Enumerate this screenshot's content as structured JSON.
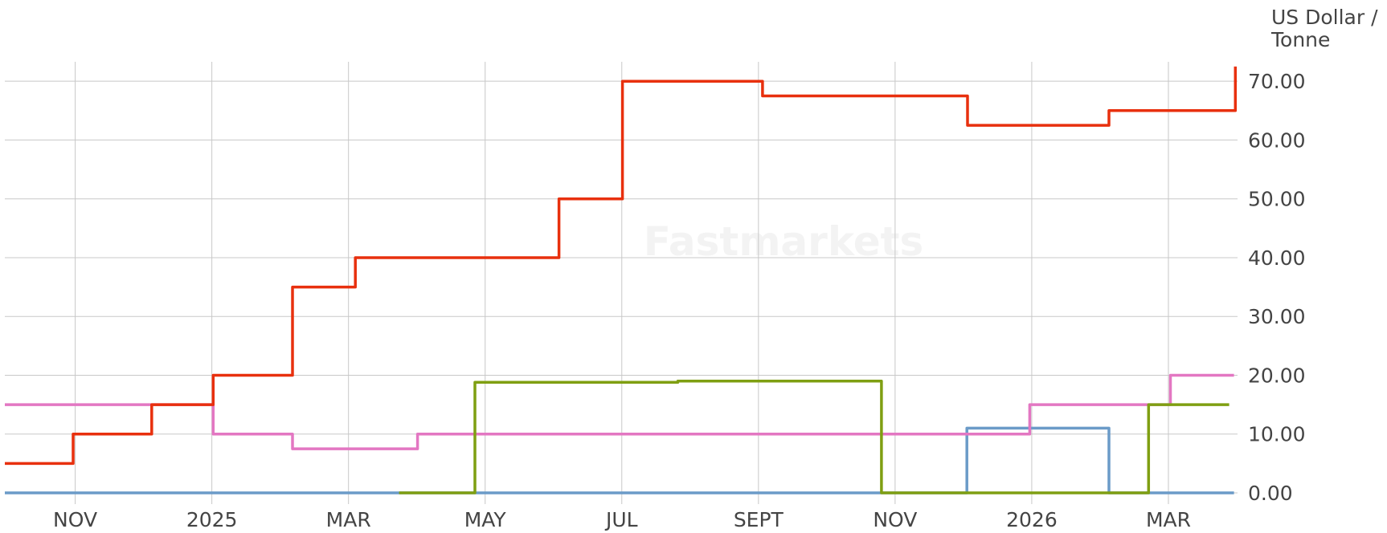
{
  "chart_data": {
    "type": "line",
    "line_shape": "hv",
    "y_label": [
      "US Dollar /",
      "Tonne"
    ],
    "watermark": "Fastmarkets",
    "grid": true,
    "xlim": [
      -1.03,
      17.0
    ],
    "xticks": [
      {
        "value": 0,
        "label": "NOV"
      },
      {
        "value": 2,
        "label": "2025"
      },
      {
        "value": 4,
        "label": "MAR"
      },
      {
        "value": 6,
        "label": "MAY"
      },
      {
        "value": 8,
        "label": "JUL"
      },
      {
        "value": 10,
        "label": "SEPT"
      },
      {
        "value": 12,
        "label": "NOV"
      },
      {
        "value": 14,
        "label": "2026"
      },
      {
        "value": 16,
        "label": "MAR"
      }
    ],
    "ylim": [
      0,
      73.3
    ],
    "yticks": [
      {
        "value": 0,
        "label": "0.00"
      },
      {
        "value": 10,
        "label": "10.00"
      },
      {
        "value": 20,
        "label": "20.00"
      },
      {
        "value": 30,
        "label": "30.00"
      },
      {
        "value": 40,
        "label": "40.00"
      },
      {
        "value": 50,
        "label": "50.00"
      },
      {
        "value": 60,
        "label": "60.00"
      },
      {
        "value": 70,
        "label": "70.00"
      }
    ],
    "series": [
      {
        "color": "#6b9bc8",
        "x": [
          -1.03,
          13.05,
          15.13,
          16.96
        ],
        "values": [
          0,
          11,
          0,
          0
        ]
      },
      {
        "color": "#e377c2",
        "x": [
          -1.03,
          2.02,
          3.18,
          5.01,
          13.97,
          16.03,
          16.96
        ],
        "values": [
          15,
          10,
          7.5,
          10,
          15,
          20,
          20
        ]
      },
      {
        "color": "#7f9f12",
        "x": [
          4.74,
          5.85,
          8.82,
          11.8,
          15.71,
          16.89
        ],
        "values": [
          0,
          18.8,
          19,
          0,
          15,
          15
        ]
      },
      {
        "color": "#e8300e",
        "x": [
          -1.03,
          -0.03,
          1.12,
          2.02,
          3.18,
          4.1,
          7.08,
          8.01,
          10.06,
          13.06,
          15.13,
          16.98
        ],
        "values": [
          5,
          10,
          15,
          20,
          35,
          40,
          50,
          70,
          67.5,
          62.5,
          65,
          72.5
        ]
      }
    ]
  }
}
